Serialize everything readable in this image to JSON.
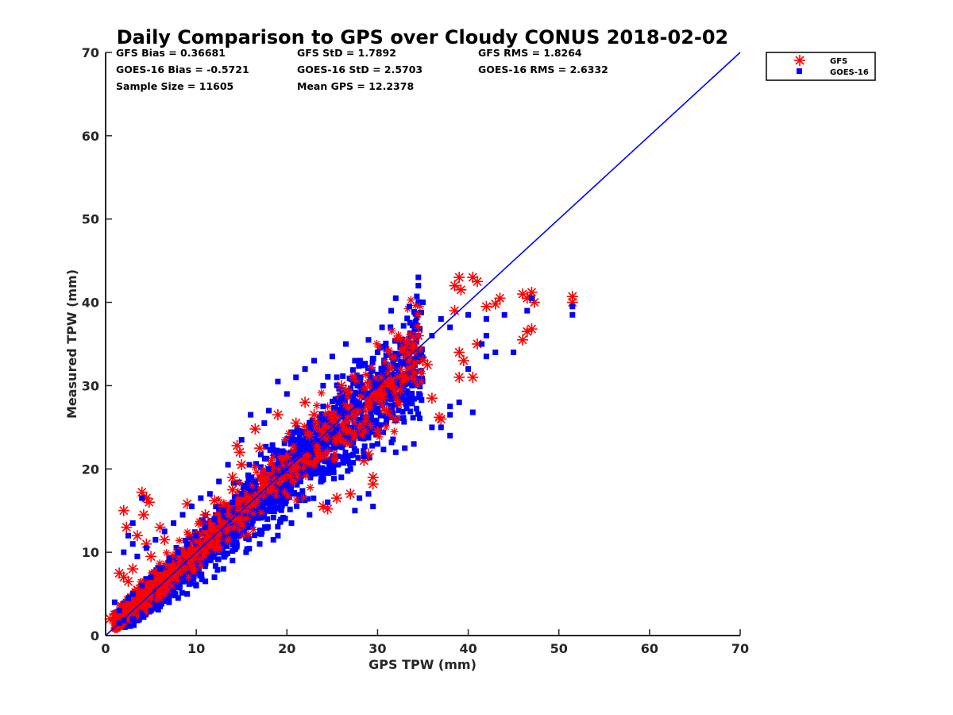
{
  "chart_data": {
    "type": "scatter",
    "title": "Daily Comparison to GPS over Cloudy CONUS 2018-02-02",
    "xlabel": "GPS TPW (mm)",
    "ylabel": "Measured TPW (mm)",
    "xlim": [
      0,
      70
    ],
    "ylim": [
      0,
      70
    ],
    "xticks": [
      "0",
      "10",
      "20",
      "30",
      "40",
      "50",
      "60",
      "70"
    ],
    "yticks": [
      "0",
      "10",
      "20",
      "30",
      "40",
      "50",
      "60",
      "70"
    ],
    "legend_position": "outside-top-right",
    "stats": [
      [
        "GFS Bias = 0.36681",
        "GFS StD = 1.7892",
        "GFS RMS = 1.8264"
      ],
      [
        "GOES-16 Bias = -0.5721",
        "GOES-16 StD = 2.5703",
        "GOES-16 RMS = 2.6332"
      ],
      [
        "Sample Size = 11605",
        "Mean GPS = 12.2378",
        ""
      ]
    ],
    "series": [
      {
        "name": "GFS",
        "color": "#ff0000",
        "marker": "asterisk",
        "points": [
          [
            2.0,
            15.0
          ],
          [
            2.3,
            13.0
          ],
          [
            1.5,
            7.5
          ],
          [
            2.0,
            7.0
          ],
          [
            2.5,
            6.5
          ],
          [
            3.0,
            8.0
          ],
          [
            4.0,
            17.2
          ],
          [
            4.5,
            16.5
          ],
          [
            4.8,
            16.0
          ],
          [
            4.2,
            14.5
          ],
          [
            4.5,
            11.0
          ],
          [
            3.5,
            12.0
          ],
          [
            6.0,
            13.0
          ],
          [
            5.0,
            9.5
          ],
          [
            9.0,
            15.8
          ],
          [
            12.0,
            16.2
          ],
          [
            14.0,
            17.5
          ],
          [
            14.5,
            22.8
          ],
          [
            14.8,
            22.0
          ],
          [
            15.0,
            20.5
          ],
          [
            14.0,
            19.0
          ],
          [
            16.5,
            24.8
          ],
          [
            17.0,
            22.5
          ],
          [
            19.0,
            26.5
          ],
          [
            22.0,
            28.0
          ],
          [
            25.0,
            26.0
          ],
          [
            26.0,
            30.0
          ],
          [
            27.5,
            31.0
          ],
          [
            28.0,
            25.0
          ],
          [
            29.0,
            21.8
          ],
          [
            28.5,
            21.0
          ],
          [
            29.5,
            19.0
          ],
          [
            29.5,
            18.2
          ],
          [
            27.0,
            17.0
          ],
          [
            25.5,
            16.5
          ],
          [
            24.0,
            15.5
          ],
          [
            24.5,
            15.2
          ],
          [
            30.0,
            24.5
          ],
          [
            31.0,
            27.0
          ],
          [
            32.0,
            26.0
          ],
          [
            34.0,
            35.0
          ],
          [
            35.0,
            33.0
          ],
          [
            35.5,
            32.5
          ],
          [
            36.0,
            28.5
          ],
          [
            36.8,
            26.2
          ],
          [
            37.0,
            26.0
          ],
          [
            38.5,
            42.0
          ],
          [
            39.0,
            43.0
          ],
          [
            39.2,
            41.5
          ],
          [
            40.5,
            43.0
          ],
          [
            41.0,
            42.5
          ],
          [
            38.5,
            39.0
          ],
          [
            39.0,
            34.0
          ],
          [
            39.5,
            33.0
          ],
          [
            39.0,
            31.0
          ],
          [
            40.5,
            31.0
          ],
          [
            41.0,
            35.0
          ],
          [
            42.0,
            39.5
          ],
          [
            43.0,
            39.8
          ],
          [
            43.5,
            40.5
          ],
          [
            46.0,
            41.0
          ],
          [
            46.5,
            40.5
          ],
          [
            47.0,
            41.2
          ],
          [
            47.3,
            40.0
          ],
          [
            46.0,
            35.5
          ],
          [
            46.5,
            36.5
          ],
          [
            47.0,
            36.8
          ],
          [
            51.5,
            40.7
          ],
          [
            51.5,
            40.0
          ],
          [
            32.5,
            29.5
          ],
          [
            33.0,
            31.0
          ],
          [
            22.5,
            24.0
          ],
          [
            20.0,
            21.5
          ],
          [
            18.0,
            20.0
          ],
          [
            10.0,
            12.0
          ],
          [
            8.0,
            10.0
          ],
          [
            7.0,
            8.5
          ],
          [
            6.5,
            11.5
          ],
          [
            11.0,
            14.5
          ],
          [
            13.0,
            15.5
          ],
          [
            21.0,
            25.5
          ],
          [
            23.0,
            26.5
          ],
          [
            26.5,
            29.5
          ],
          [
            31.5,
            30.5
          ],
          [
            1.0,
            2.5
          ],
          [
            0.5,
            2.0
          ],
          [
            5.5,
            7.5
          ],
          [
            3.5,
            5.5
          ],
          [
            2.8,
            4.0
          ],
          [
            33.0,
            34.5
          ],
          [
            34.5,
            36.0
          ],
          [
            30.5,
            28.5
          ]
        ]
      },
      {
        "name": "GOES-16",
        "color": "#0000ff",
        "marker": "square",
        "points": [
          [
            34.5,
            43.0
          ],
          [
            34.5,
            42.0
          ],
          [
            32.0,
            40.5
          ],
          [
            33.5,
            39.5
          ],
          [
            35.0,
            40.0
          ],
          [
            31.5,
            39.0
          ],
          [
            30.5,
            37.0
          ],
          [
            36.0,
            36.0
          ],
          [
            37.0,
            38.0
          ],
          [
            38.0,
            37.0
          ],
          [
            40.0,
            38.5
          ],
          [
            42.0,
            38.0
          ],
          [
            44.0,
            38.5
          ],
          [
            45.0,
            34.0
          ],
          [
            42.0,
            33.5
          ],
          [
            40.0,
            32.0
          ],
          [
            39.0,
            28.0
          ],
          [
            38.0,
            27.5
          ],
          [
            38.0,
            26.5
          ],
          [
            40.5,
            26.8
          ],
          [
            38.0,
            24.0
          ],
          [
            37.0,
            25.0
          ],
          [
            34.0,
            23.0
          ],
          [
            36.0,
            25.0
          ],
          [
            33.0,
            22.5
          ],
          [
            32.0,
            22.0
          ],
          [
            30.0,
            23.0
          ],
          [
            28.5,
            21.5
          ],
          [
            27.0,
            20.0
          ],
          [
            26.0,
            19.0
          ],
          [
            29.0,
            17.0
          ],
          [
            28.0,
            16.5
          ],
          [
            29.5,
            15.5
          ],
          [
            27.5,
            15.0
          ],
          [
            24.5,
            16.0
          ],
          [
            22.5,
            14.5
          ],
          [
            20.5,
            13.5
          ],
          [
            19.0,
            12.0
          ],
          [
            18.5,
            11.5
          ],
          [
            17.0,
            11.0
          ],
          [
            15.5,
            10.0
          ],
          [
            14.0,
            9.0
          ],
          [
            13.0,
            8.0
          ],
          [
            12.0,
            7.0
          ],
          [
            11.0,
            6.5
          ],
          [
            10.0,
            6.0
          ],
          [
            9.0,
            5.0
          ],
          [
            8.0,
            4.5
          ],
          [
            7.0,
            4.0
          ],
          [
            6.0,
            3.5
          ],
          [
            5.0,
            3.0
          ],
          [
            4.0,
            2.5
          ],
          [
            3.0,
            2.0
          ],
          [
            2.0,
            1.8
          ],
          [
            1.5,
            1.5
          ],
          [
            47.0,
            40.5
          ],
          [
            46.5,
            39.0
          ],
          [
            51.5,
            39.5
          ],
          [
            51.5,
            38.5
          ],
          [
            42.0,
            36.0
          ],
          [
            41.5,
            35.0
          ],
          [
            43.0,
            34.0
          ],
          [
            16.0,
            26.5
          ],
          [
            18.0,
            27.0
          ],
          [
            20.0,
            29.0
          ],
          [
            17.5,
            25.5
          ],
          [
            19.0,
            30.5
          ],
          [
            21.0,
            31.0
          ],
          [
            23.0,
            33.0
          ],
          [
            25.0,
            33.5
          ],
          [
            26.5,
            35.0
          ],
          [
            22.0,
            32.0
          ],
          [
            24.0,
            30.0
          ],
          [
            15.0,
            23.5
          ],
          [
            13.5,
            20.5
          ],
          [
            12.5,
            18.5
          ],
          [
            11.5,
            17.0
          ],
          [
            10.5,
            16.5
          ],
          [
            9.5,
            15.5
          ],
          [
            8.5,
            14.5
          ],
          [
            7.5,
            13.5
          ],
          [
            6.5,
            12.5
          ],
          [
            5.5,
            11.5
          ],
          [
            4.5,
            10.5
          ],
          [
            3.5,
            9.5
          ],
          [
            4.0,
            16.5
          ],
          [
            3.0,
            13.5
          ],
          [
            2.5,
            12.0
          ],
          [
            3.0,
            11.0
          ],
          [
            2.0,
            10.0
          ],
          [
            1.0,
            4.0
          ],
          [
            1.5,
            3.0
          ],
          [
            2.5,
            4.5
          ],
          [
            33.5,
            28.0
          ],
          [
            31.0,
            26.0
          ],
          [
            24.0,
            27.5
          ],
          [
            25.5,
            31.0
          ],
          [
            27.5,
            33.0
          ],
          [
            29.0,
            35.5
          ],
          [
            30.0,
            34.0
          ],
          [
            28.0,
            31.0
          ],
          [
            26.0,
            28.5
          ],
          [
            22.5,
            25.5
          ],
          [
            21.0,
            23.5
          ],
          [
            19.5,
            22.0
          ],
          [
            18.0,
            20.0
          ],
          [
            16.5,
            18.5
          ],
          [
            15.0,
            17.0
          ],
          [
            14.0,
            16.0
          ],
          [
            13.0,
            15.0
          ],
          [
            12.0,
            14.0
          ],
          [
            11.0,
            13.0
          ],
          [
            10.0,
            12.0
          ],
          [
            9.0,
            11.0
          ],
          [
            8.0,
            10.0
          ],
          [
            7.0,
            9.0
          ],
          [
            6.0,
            8.0
          ],
          [
            5.0,
            7.0
          ],
          [
            4.0,
            6.0
          ],
          [
            3.0,
            5.0
          ]
        ]
      }
    ],
    "reference_line": {
      "color": "#0000ff",
      "x": [
        0,
        70
      ],
      "y": [
        0,
        70
      ]
    }
  }
}
